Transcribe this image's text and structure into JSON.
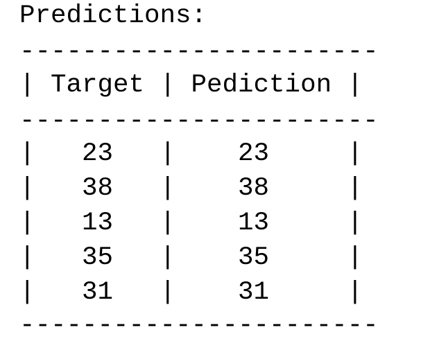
{
  "output": {
    "heading": "Predictions:",
    "border": "-----------------------",
    "header_row": "| Target | Pediction |",
    "rows": [
      "|   23   |    23     |",
      "|   38   |    38     |",
      "|   13   |    13     |",
      "|   35   |    35     |",
      "|   31   |    31     |"
    ]
  },
  "table": {
    "columns": [
      "Target",
      "Pediction"
    ],
    "values": [
      [
        "23",
        "23"
      ],
      [
        "38",
        "38"
      ],
      [
        "13",
        "13"
      ],
      [
        "35",
        "35"
      ],
      [
        "31",
        "31"
      ]
    ]
  }
}
